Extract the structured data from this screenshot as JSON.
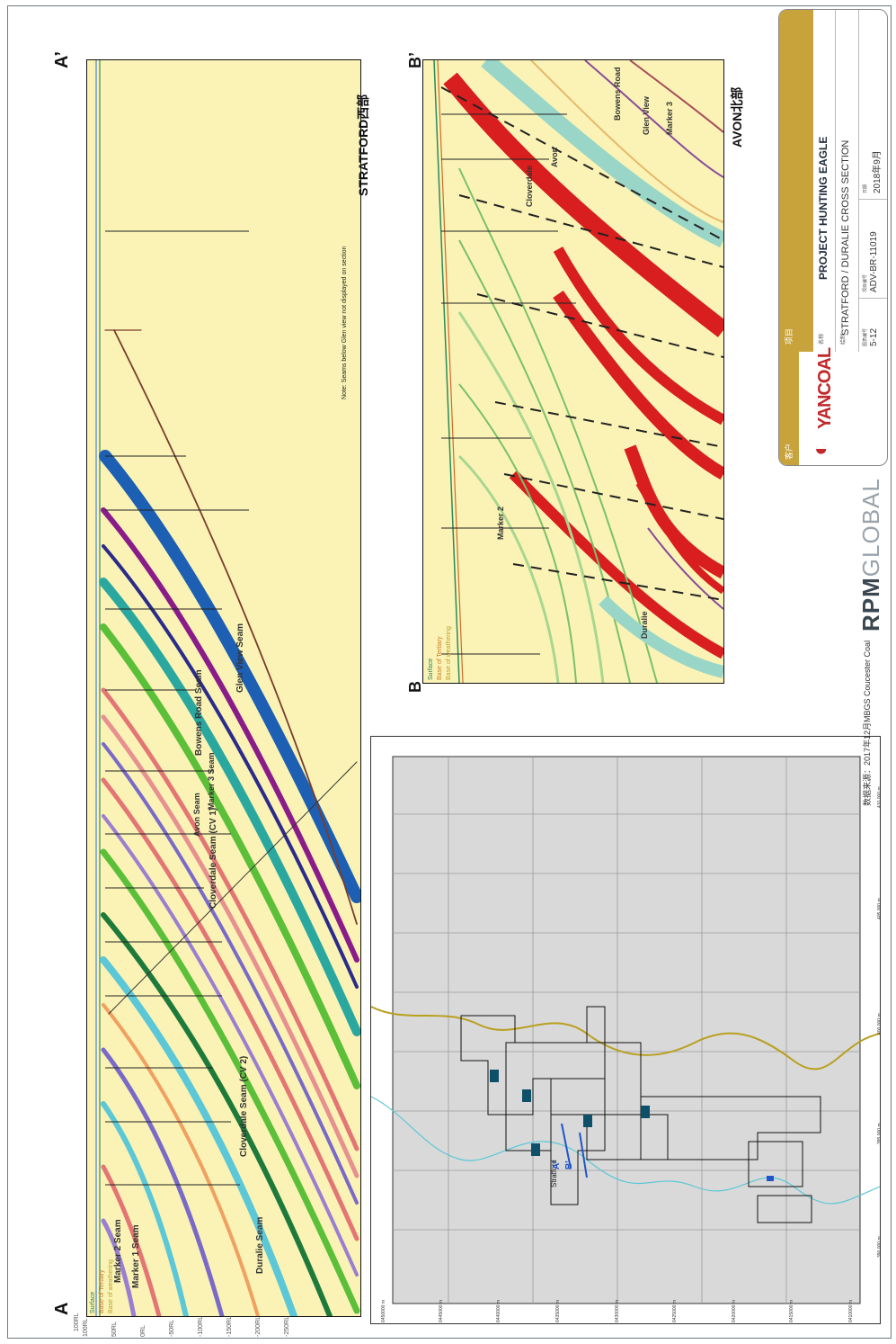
{
  "sectionA": {
    "label_start": "A",
    "label_end": "A’",
    "end_location": "STRATFORD西部",
    "note": "Note: Seams below Glen view not displayed on section",
    "legend": [
      "Surface",
      "Base of Tertiary",
      "Base of weathering"
    ],
    "seams": [
      "Glen View Seam",
      "Bowens Road Seam",
      "Marker 3 Seam",
      "Avon Seam",
      "Cloverdale Seam (CV 1)",
      "Cloverdale Seam (CV 2)",
      "Marker 2 Seam",
      "Marker 1 Seam",
      "Duralie Seam"
    ],
    "elevations": [
      "100RL",
      "50RL",
      "0RL",
      "-50RL",
      "-100RL",
      "-150RL",
      "-200RL",
      "-250RL"
    ]
  },
  "sectionB": {
    "label_start": "B",
    "label_end": "B’",
    "end_location": "AVON北部",
    "legend": [
      "Surface",
      "Base of Tertiary",
      "Base of weathering"
    ],
    "seams": [
      "Bowens Road",
      "Avon",
      "Cloverdale",
      "Marker 2",
      "Glen View",
      "Marker 3",
      "Duralie"
    ]
  },
  "map": {
    "eastings": [
      "6450000 m",
      "6445000 m",
      "6440000 m",
      "6435000 m",
      "6430000 m",
      "6425000 m",
      "6420000 m",
      "6415000 m",
      "6410000 m"
    ],
    "northings": [
      "390 000 m",
      "395 000 m",
      "400 000 m",
      "405 000 m",
      "410 000 m"
    ],
    "place": "Stratford",
    "section_A": "A'",
    "section_B": "B'"
  },
  "source": "数据来源：2017年12月MBGS Coucester Coal",
  "brand": {
    "bold": "RPM",
    "light": "GLOBAL"
  },
  "title_block": {
    "client_label": "客户",
    "client_logo": "YANCOAL",
    "project_label": "项目",
    "name_label": "名称",
    "project_name": "PROJECT HUNTING EAGLE",
    "drawing_label": "绘制",
    "drawing_title": "STRATFORD / DURALIE CROSS SECTION",
    "fig_label": "图表编号",
    "fig_value": "5-12",
    "proj_no_label": "项目编号",
    "proj_no": "ADV-BR-11019",
    "date_label": "日期",
    "date": "2018年9月"
  },
  "colors": {
    "background": "#faf3b5",
    "accent": "#c8a23a",
    "frame": "#6d7a84"
  }
}
